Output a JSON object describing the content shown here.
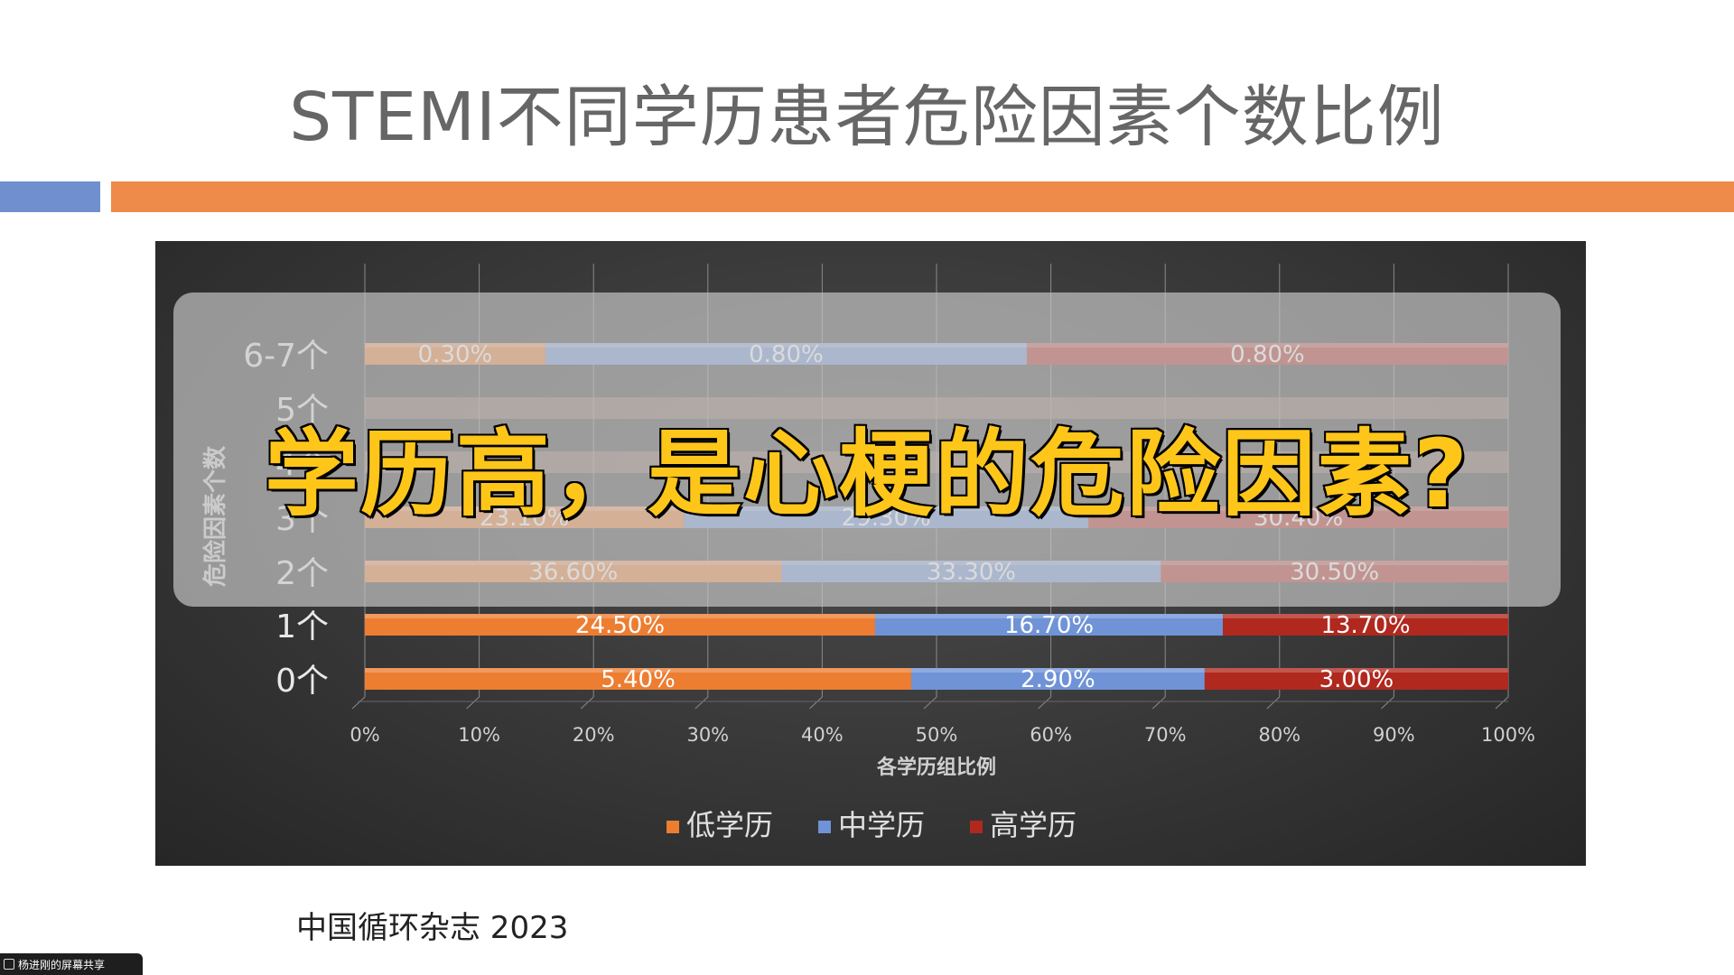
{
  "slide": {
    "title": "STEMI不同学历患者危险因素个数比例",
    "source": "中国循环杂志 2023",
    "overlay_caption": "学历高，是心梗的危险因素?",
    "share_badge": "杨进刚的屏幕共享"
  },
  "colors": {
    "accent_blue": "#6f8fcf",
    "accent_orange": "#ee8a4a",
    "low": "#ed7d31",
    "mid": "#6f93d6",
    "high": "#b0281e"
  },
  "chart_data": {
    "type": "bar",
    "orientation": "horizontal",
    "stacked": true,
    "categories": [
      "0个",
      "1个",
      "2个",
      "3个",
      "4个",
      "5个",
      "6-7个"
    ],
    "series": [
      {
        "name": "低学历",
        "values": [
          5.4,
          24.5,
          36.6,
          23.1,
          null,
          null,
          0.3
        ],
        "labels": [
          "5.40%",
          "24.50%",
          "36.60%",
          "23.10%",
          "",
          "",
          "0.30%"
        ]
      },
      {
        "name": "中学历",
        "values": [
          2.9,
          16.7,
          33.3,
          29.3,
          null,
          null,
          0.8
        ],
        "labels": [
          "2.90%",
          "16.70%",
          "33.30%",
          "29.30%",
          "",
          "",
          "0.80%"
        ]
      },
      {
        "name": "高学历",
        "values": [
          3.0,
          13.7,
          30.5,
          30.4,
          null,
          null,
          0.8
        ],
        "labels": [
          "3.00%",
          "13.70%",
          "30.50%",
          "30.40%",
          "",
          "",
          "0.80%"
        ]
      }
    ],
    "xlabel": "各学历组比例",
    "ylabel": "危险因素个数",
    "xlim": [
      0,
      100
    ],
    "xticks": [
      "0%",
      "10%",
      "20%",
      "30%",
      "40%",
      "50%",
      "60%",
      "70%",
      "80%",
      "90%",
      "100%"
    ],
    "grid": true,
    "legend_position": "bottom"
  }
}
